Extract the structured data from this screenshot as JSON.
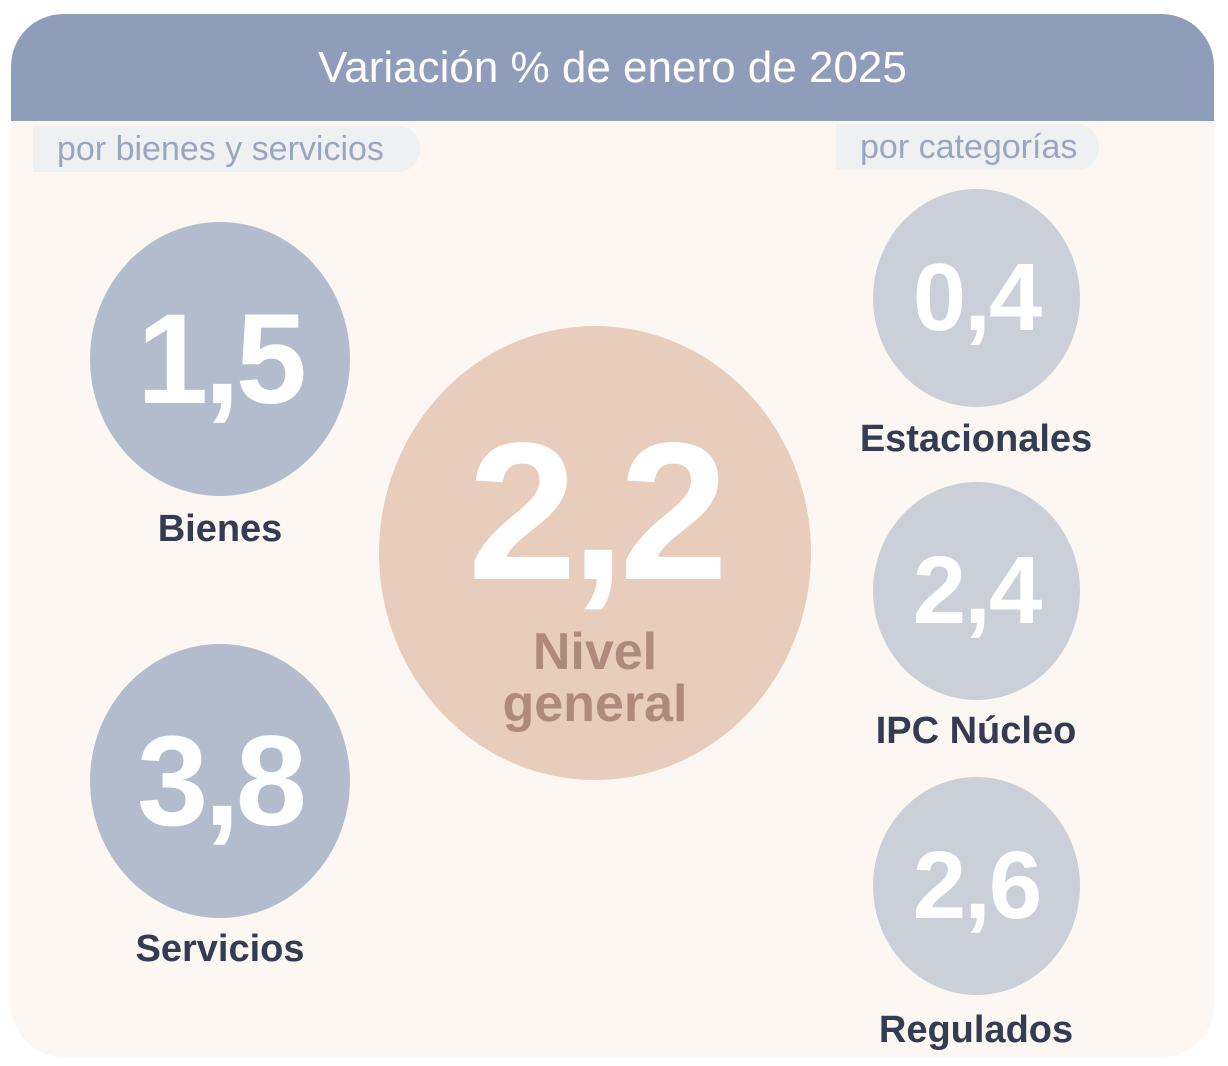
{
  "title": "Variación % de enero de 2025",
  "section_left": "por bienes y servicios",
  "section_right": "por categorías",
  "general": {
    "value": "2,2",
    "label_line1": "Nivel",
    "label_line2": "general"
  },
  "chart_data": {
    "type": "bubble-infographic",
    "title": "Variación % de enero de 2025",
    "groups": [
      {
        "name": "por bienes y servicios",
        "items": [
          {
            "label": "Bienes",
            "value": 1.5,
            "display": "1,5"
          },
          {
            "label": "Servicios",
            "value": 3.8,
            "display": "3,8"
          }
        ]
      },
      {
        "name": "por categorías",
        "items": [
          {
            "label": "Estacionales",
            "value": 0.4,
            "display": "0,4"
          },
          {
            "label": "IPC Núcleo",
            "value": 2.4,
            "display": "2,4"
          },
          {
            "label": "Regulados",
            "value": 2.6,
            "display": "2,6"
          }
        ]
      }
    ],
    "headline": {
      "label": "Nivel general",
      "value": 2.2,
      "display": "2,2"
    }
  },
  "colors": {
    "header": "#8f9dbb",
    "background": "#fcf7f2",
    "goods_services_circle": "#b3bccd",
    "category_circle": "#cbcfd8",
    "general_circle": "#e8ccbc",
    "general_label": "#ad8a7b",
    "label_text": "#343b52"
  }
}
